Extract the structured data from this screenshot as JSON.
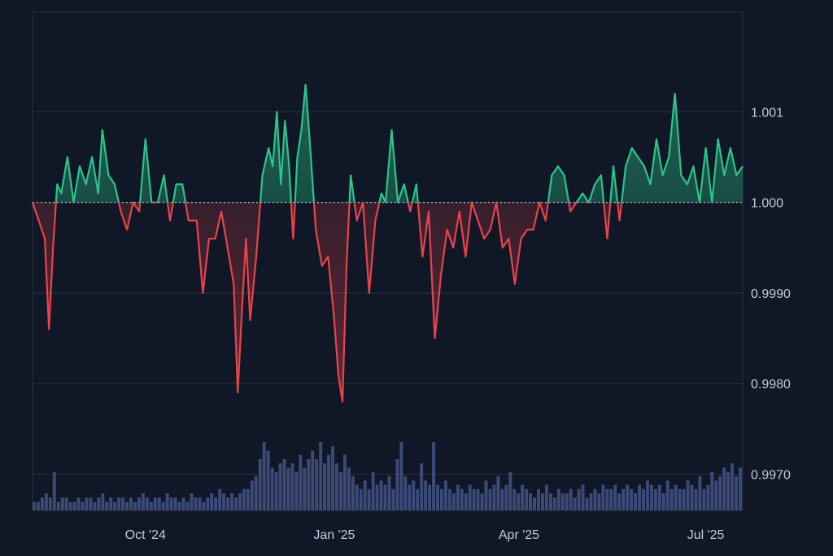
{
  "chart_data": {
    "type": "line",
    "baseline": 1.0,
    "ylim": [
      0.9966,
      1.0021
    ],
    "y_ticks": [
      "1.001",
      "1.000",
      "0.9990",
      "0.9980",
      "0.9970"
    ],
    "y_tick_values": [
      1.001,
      1.0,
      0.999,
      0.998,
      0.997
    ],
    "x_ticks": [
      "Oct '24",
      "Jan '25",
      "Apr '25",
      "Jul '25"
    ],
    "x_tick_dates": [
      "2024-10-01",
      "2025-01-01",
      "2025-04-01",
      "2025-07-01"
    ],
    "x_range": [
      "2024-08-07",
      "2025-07-19"
    ],
    "grid": true,
    "colors": {
      "up": "#2bc48a",
      "down": "#e8434b",
      "volume": "#3c4a78",
      "grid": "#2a3242",
      "background": "#101726"
    },
    "series": [
      {
        "points": [
          [
            "2024-08-07",
            1.0
          ],
          [
            "2024-08-10",
            0.9998
          ],
          [
            "2024-08-13",
            0.9996
          ],
          [
            "2024-08-15",
            0.9986
          ],
          [
            "2024-08-17",
            0.9995
          ],
          [
            "2024-08-19",
            1.0002
          ],
          [
            "2024-08-21",
            1.0001
          ],
          [
            "2024-08-24",
            1.0005
          ],
          [
            "2024-08-27",
            1.0
          ],
          [
            "2024-08-30",
            1.0004
          ],
          [
            "2024-09-02",
            1.0002
          ],
          [
            "2024-09-05",
            1.0005
          ],
          [
            "2024-09-08",
            1.0001
          ],
          [
            "2024-09-10",
            1.0008
          ],
          [
            "2024-09-13",
            1.0003
          ],
          [
            "2024-09-16",
            1.0002
          ],
          [
            "2024-09-19",
            0.9999
          ],
          [
            "2024-09-22",
            0.9997
          ],
          [
            "2024-09-25",
            1.0
          ],
          [
            "2024-09-28",
            0.9999
          ],
          [
            "2024-10-01",
            1.0007
          ],
          [
            "2024-10-04",
            1.0
          ],
          [
            "2024-10-07",
            1.0
          ],
          [
            "2024-10-10",
            1.0003
          ],
          [
            "2024-10-13",
            0.9998
          ],
          [
            "2024-10-16",
            1.0002
          ],
          [
            "2024-10-19",
            1.0002
          ],
          [
            "2024-10-22",
            0.9998
          ],
          [
            "2024-10-26",
            0.9998
          ],
          [
            "2024-10-29",
            0.999
          ],
          [
            "2024-11-01",
            0.9996
          ],
          [
            "2024-11-04",
            0.9996
          ],
          [
            "2024-11-07",
            0.9999
          ],
          [
            "2024-11-10",
            0.9995
          ],
          [
            "2024-11-13",
            0.9991
          ],
          [
            "2024-11-15",
            0.9979
          ],
          [
            "2024-11-17",
            0.9988
          ],
          [
            "2024-11-19",
            0.9996
          ],
          [
            "2024-11-21",
            0.9987
          ],
          [
            "2024-11-24",
            0.9994
          ],
          [
            "2024-11-27",
            1.0003
          ],
          [
            "2024-11-30",
            1.0006
          ],
          [
            "2024-12-02",
            1.0004
          ],
          [
            "2024-12-04",
            1.001
          ],
          [
            "2024-12-06",
            1.0002
          ],
          [
            "2024-12-08",
            1.0009
          ],
          [
            "2024-12-10",
            1.0004
          ],
          [
            "2024-12-12",
            0.9996
          ],
          [
            "2024-12-14",
            1.0005
          ],
          [
            "2024-12-16",
            1.0008
          ],
          [
            "2024-12-18",
            1.0013
          ],
          [
            "2024-12-20",
            1.0007
          ],
          [
            "2024-12-23",
            0.9997
          ],
          [
            "2024-12-26",
            0.9993
          ],
          [
            "2024-12-29",
            0.9994
          ],
          [
            "2025-01-01",
            0.9987
          ],
          [
            "2025-01-03",
            0.9981
          ],
          [
            "2025-01-05",
            0.9978
          ],
          [
            "2025-01-07",
            0.9993
          ],
          [
            "2025-01-09",
            1.0003
          ],
          [
            "2025-01-12",
            0.9998
          ],
          [
            "2025-01-15",
            1.0
          ],
          [
            "2025-01-18",
            0.999
          ],
          [
            "2025-01-21",
            0.9998
          ],
          [
            "2025-01-24",
            1.0001
          ],
          [
            "2025-01-26",
            1.0
          ],
          [
            "2025-01-29",
            1.0008
          ],
          [
            "2025-02-01",
            1.0
          ],
          [
            "2025-02-04",
            1.0002
          ],
          [
            "2025-02-07",
            0.9999
          ],
          [
            "2025-02-10",
            1.0002
          ],
          [
            "2025-02-13",
            0.9994
          ],
          [
            "2025-02-16",
            0.9999
          ],
          [
            "2025-02-19",
            0.9985
          ],
          [
            "2025-02-22",
            0.9992
          ],
          [
            "2025-02-25",
            0.9997
          ],
          [
            "2025-02-28",
            0.9995
          ],
          [
            "2025-03-03",
            0.9999
          ],
          [
            "2025-03-06",
            0.9994
          ],
          [
            "2025-03-09",
            1.0
          ],
          [
            "2025-03-12",
            0.9998
          ],
          [
            "2025-03-15",
            0.9996
          ],
          [
            "2025-03-18",
            0.9997
          ],
          [
            "2025-03-21",
            1.0
          ],
          [
            "2025-03-24",
            0.9995
          ],
          [
            "2025-03-27",
            0.9996
          ],
          [
            "2025-03-30",
            0.9991
          ],
          [
            "2025-04-02",
            0.9996
          ],
          [
            "2025-04-05",
            0.9997
          ],
          [
            "2025-04-08",
            0.9997
          ],
          [
            "2025-04-11",
            1.0
          ],
          [
            "2025-04-14",
            0.9998
          ],
          [
            "2025-04-17",
            1.0003
          ],
          [
            "2025-04-20",
            1.0004
          ],
          [
            "2025-04-23",
            1.0003
          ],
          [
            "2025-04-26",
            0.9999
          ],
          [
            "2025-04-29",
            1.0
          ],
          [
            "2025-05-02",
            1.0001
          ],
          [
            "2025-05-05",
            1.0
          ],
          [
            "2025-05-08",
            1.0002
          ],
          [
            "2025-05-11",
            1.0003
          ],
          [
            "2025-05-14",
            0.9996
          ],
          [
            "2025-05-17",
            1.0004
          ],
          [
            "2025-05-20",
            0.9998
          ],
          [
            "2025-05-23",
            1.0004
          ],
          [
            "2025-05-26",
            1.0006
          ],
          [
            "2025-05-29",
            1.0005
          ],
          [
            "2025-06-01",
            1.0004
          ],
          [
            "2025-06-04",
            1.0002
          ],
          [
            "2025-06-07",
            1.0007
          ],
          [
            "2025-06-10",
            1.0003
          ],
          [
            "2025-06-13",
            1.0005
          ],
          [
            "2025-06-16",
            1.0012
          ],
          [
            "2025-06-19",
            1.0003
          ],
          [
            "2025-06-22",
            1.0002
          ],
          [
            "2025-06-25",
            1.0004
          ],
          [
            "2025-06-28",
            1.0
          ],
          [
            "2025-07-01",
            1.0006
          ],
          [
            "2025-07-04",
            1.0
          ],
          [
            "2025-07-07",
            1.0007
          ],
          [
            "2025-07-10",
            1.0003
          ],
          [
            "2025-07-13",
            1.0006
          ],
          [
            "2025-07-16",
            1.0003
          ],
          [
            "2025-07-19",
            1.0004
          ]
        ]
      }
    ],
    "volume": [
      2,
      2,
      3,
      4,
      3,
      9,
      2,
      3,
      3,
      2,
      2,
      3,
      2,
      3,
      3,
      2,
      3,
      4,
      2,
      3,
      2,
      3,
      3,
      2,
      3,
      2,
      3,
      4,
      3,
      2,
      3,
      3,
      2,
      4,
      3,
      3,
      2,
      3,
      2,
      4,
      3,
      3,
      2,
      3,
      4,
      3,
      5,
      4,
      3,
      4,
      3,
      4,
      5,
      5,
      7,
      8,
      12,
      16,
      14,
      10,
      9,
      11,
      12,
      10,
      11,
      9,
      13,
      10,
      12,
      14,
      12,
      16,
      11,
      13,
      15,
      11,
      9,
      13,
      10,
      8,
      6,
      5,
      7,
      5,
      9,
      6,
      7,
      6,
      8,
      5,
      12,
      16,
      8,
      6,
      7,
      5,
      11,
      7,
      6,
      16,
      6,
      5,
      7,
      5,
      4,
      6,
      5,
      4,
      6,
      5,
      5,
      4,
      7,
      5,
      6,
      8,
      5,
      6,
      9,
      5,
      4,
      6,
      5,
      4,
      3,
      5,
      4,
      6,
      4,
      3,
      5,
      4,
      4,
      5,
      3,
      5,
      6,
      3,
      4,
      5,
      4,
      6,
      5,
      5,
      6,
      4,
      5,
      6,
      5,
      4,
      6,
      5,
      7,
      6,
      5,
      6,
      4,
      7,
      5,
      6,
      5,
      5,
      7,
      6,
      5,
      8,
      5,
      6,
      9,
      7,
      8,
      10,
      9,
      11,
      8,
      10
    ]
  }
}
